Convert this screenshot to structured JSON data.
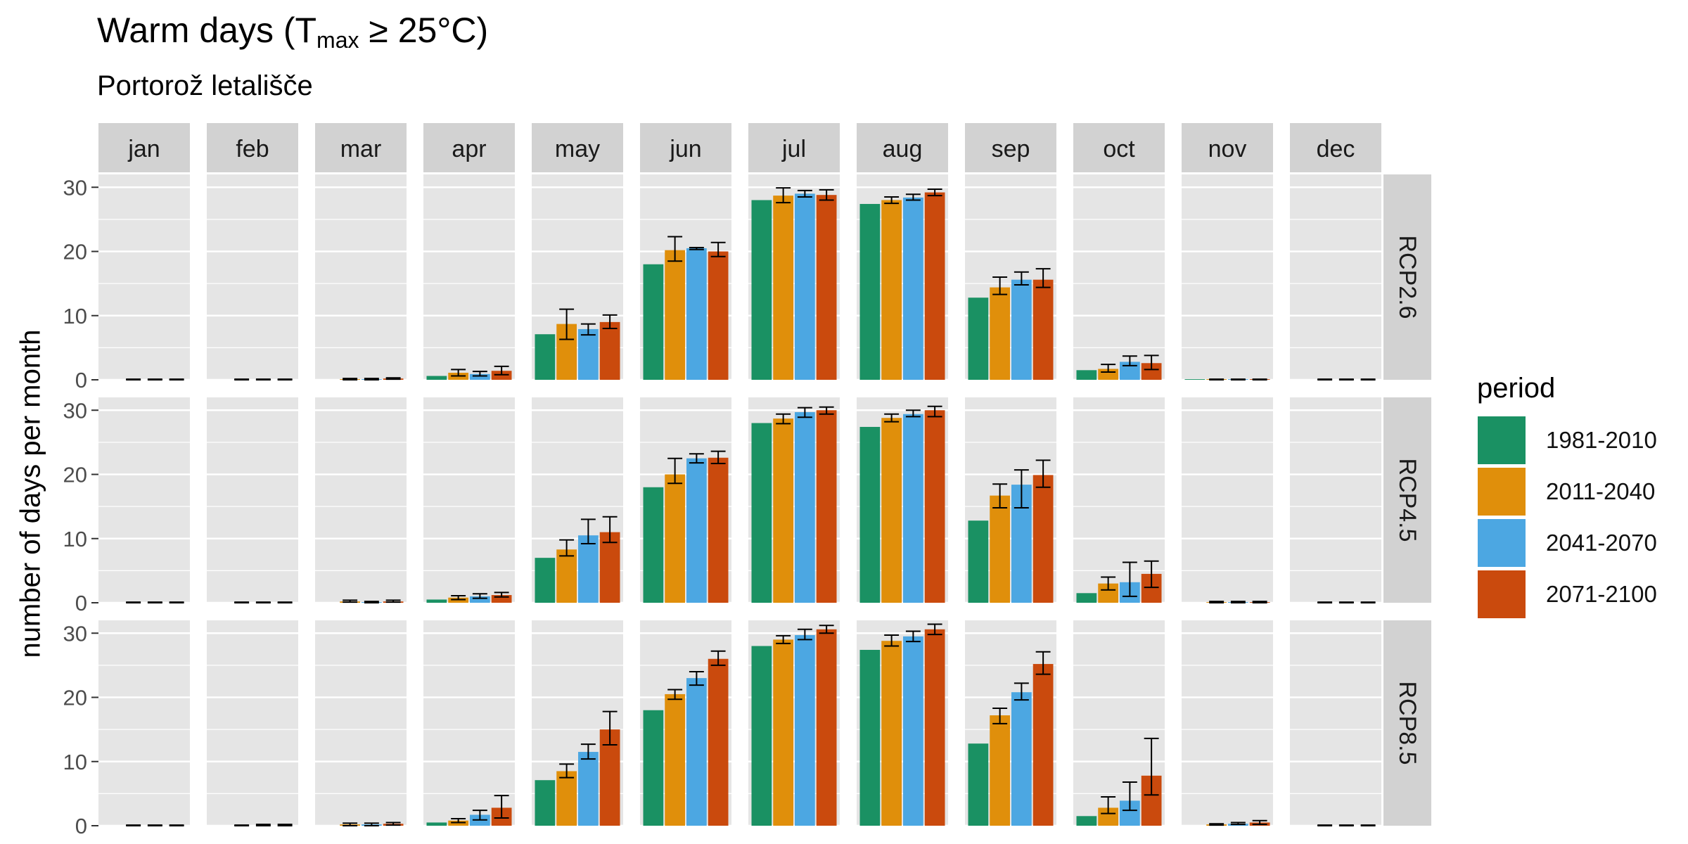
{
  "title": {
    "main": "Warm days (T",
    "sub": "max",
    "suffix": " ≥ 25°C)"
  },
  "subtitle": "Portorož letališče",
  "colors": {
    "panel_bg": "#e5e5e5",
    "strip_bg": "#d2d2d2",
    "grid": "#ffffff",
    "periods": [
      "#1a9163",
      "#e08f0b",
      "#4ca7e2",
      "#ca4a0d"
    ]
  },
  "chart_data": {
    "type": "bar",
    "ylabel": "number of days per month",
    "ylim": [
      0,
      32
    ],
    "yticks": [
      0,
      10,
      20,
      30
    ],
    "months": [
      "jan",
      "feb",
      "mar",
      "apr",
      "may",
      "jun",
      "jul",
      "aug",
      "sep",
      "oct",
      "nov",
      "dec"
    ],
    "scenarios": [
      "RCP2.6",
      "RCP4.5",
      "RCP8.5"
    ],
    "legend": {
      "title": "period",
      "position": "right",
      "entries": [
        "1981-2010",
        "2011-2040",
        "2041-2070",
        "2071-2100"
      ]
    },
    "panels": {
      "RCP2.6": {
        "values": [
          [
            0,
            0,
            0,
            0
          ],
          [
            0,
            0,
            0,
            0
          ],
          [
            0,
            0.1,
            0.1,
            0.2
          ],
          [
            0.6,
            1.1,
            0.9,
            1.4
          ],
          [
            7.1,
            8.7,
            7.9,
            9.0
          ],
          [
            18.0,
            20.2,
            20.5,
            20.0
          ],
          [
            28.0,
            28.7,
            29.0,
            28.8
          ],
          [
            27.4,
            28.0,
            28.4,
            29.2
          ],
          [
            12.8,
            14.4,
            15.6,
            15.6
          ],
          [
            1.5,
            1.7,
            2.8,
            2.6
          ],
          [
            0.1,
            0.1,
            0.1,
            0.1
          ],
          [
            0,
            0,
            0,
            0
          ]
        ],
        "errors": [
          [
            null,
            [
              0,
              0.1
            ],
            [
              0,
              0.1
            ],
            [
              0,
              0.1
            ]
          ],
          [
            null,
            [
              0,
              0.1
            ],
            [
              0,
              0.1
            ],
            [
              0,
              0.1
            ]
          ],
          [
            null,
            [
              0,
              0.2
            ],
            [
              0,
              0.2
            ],
            [
              0.1,
              0.3
            ]
          ],
          [
            null,
            [
              0.6,
              1.6
            ],
            [
              0.6,
              1.3
            ],
            [
              0.8,
              2.1
            ]
          ],
          [
            null,
            [
              6.3,
              11.0
            ],
            [
              7.0,
              8.7
            ],
            [
              8.0,
              10.1
            ]
          ],
          [
            null,
            [
              18.5,
              22.3
            ],
            [
              20.3,
              20.6
            ],
            [
              19.2,
              21.4
            ]
          ],
          [
            null,
            [
              27.6,
              29.9
            ],
            [
              28.5,
              29.5
            ],
            [
              28.0,
              29.6
            ]
          ],
          [
            null,
            [
              27.5,
              28.5
            ],
            [
              28.0,
              28.9
            ],
            [
              28.7,
              29.7
            ]
          ],
          [
            null,
            [
              13.3,
              16.0
            ],
            [
              14.8,
              16.8
            ],
            [
              14.4,
              17.3
            ]
          ],
          [
            null,
            [
              1.2,
              2.4
            ],
            [
              2.2,
              3.7
            ],
            [
              1.6,
              3.8
            ]
          ],
          [
            null,
            [
              0,
              0.1
            ],
            [
              0,
              0.1
            ],
            [
              0,
              0.1
            ]
          ],
          [
            null,
            [
              0,
              0.1
            ],
            [
              0,
              0.1
            ],
            [
              0,
              0.1
            ]
          ]
        ]
      },
      "RCP4.5": {
        "values": [
          [
            0,
            0,
            0,
            0
          ],
          [
            0,
            0,
            0,
            0
          ],
          [
            0,
            0.2,
            0.1,
            0.2
          ],
          [
            0.5,
            0.8,
            1.0,
            1.2
          ],
          [
            7.0,
            8.3,
            10.5,
            11.0
          ],
          [
            18.0,
            20.0,
            22.5,
            22.6
          ],
          [
            28.0,
            28.7,
            29.7,
            30.0
          ],
          [
            27.4,
            28.8,
            29.4,
            30.0
          ],
          [
            12.8,
            16.7,
            18.4,
            19.9
          ],
          [
            1.5,
            3.0,
            3.2,
            4.5
          ],
          [
            0,
            0.1,
            0.1,
            0.1
          ],
          [
            0,
            0,
            0,
            0
          ]
        ],
        "errors": [
          [
            null,
            [
              0,
              0.1
            ],
            [
              0,
              0.1
            ],
            [
              0,
              0.1
            ]
          ],
          [
            null,
            [
              0,
              0.1
            ],
            [
              0,
              0.1
            ],
            [
              0,
              0.1
            ]
          ],
          [
            null,
            [
              0.1,
              0.4
            ],
            [
              0,
              0.2
            ],
            [
              0.1,
              0.4
            ]
          ],
          [
            null,
            [
              0.5,
              1.1
            ],
            [
              0.7,
              1.4
            ],
            [
              0.9,
              1.6
            ]
          ],
          [
            null,
            [
              7.3,
              9.8
            ],
            [
              9.2,
              13.0
            ],
            [
              9.4,
              13.4
            ]
          ],
          [
            null,
            [
              18.6,
              22.5
            ],
            [
              21.8,
              23.2
            ],
            [
              21.7,
              23.6
            ]
          ],
          [
            null,
            [
              27.9,
              29.4
            ],
            [
              28.9,
              30.4
            ],
            [
              29.4,
              30.5
            ]
          ],
          [
            null,
            [
              28.2,
              29.4
            ],
            [
              29.0,
              30.0
            ],
            [
              29.0,
              30.6
            ]
          ],
          [
            null,
            [
              14.8,
              18.5
            ],
            [
              14.8,
              20.7
            ],
            [
              18.0,
              22.2
            ]
          ],
          [
            null,
            [
              2.0,
              4.0
            ],
            [
              1.0,
              6.3
            ],
            [
              2.4,
              6.5
            ]
          ],
          [
            null,
            [
              0,
              0.2
            ],
            [
              0,
              0.2
            ],
            [
              0,
              0.2
            ]
          ],
          [
            null,
            [
              0,
              0.1
            ],
            [
              0,
              0.1
            ],
            [
              0,
              0.1
            ]
          ]
        ]
      },
      "RCP8.5": {
        "values": [
          [
            0,
            0,
            0,
            0
          ],
          [
            0,
            0,
            0,
            0
          ],
          [
            0,
            0.2,
            0.2,
            0.3
          ],
          [
            0.5,
            0.8,
            1.7,
            2.8
          ],
          [
            7.1,
            8.5,
            11.5,
            15.0
          ],
          [
            18.0,
            20.5,
            23.0,
            26.0
          ],
          [
            28.0,
            29.0,
            29.7,
            30.6
          ],
          [
            27.4,
            28.8,
            29.5,
            30.6
          ],
          [
            12.8,
            17.2,
            20.8,
            25.2
          ],
          [
            1.5,
            2.8,
            3.9,
            7.8
          ],
          [
            0,
            0.2,
            0.3,
            0.5
          ],
          [
            0,
            0,
            0,
            0
          ]
        ],
        "errors": [
          [
            null,
            [
              0,
              0.1
            ],
            [
              0,
              0.1
            ],
            [
              0,
              0.1
            ]
          ],
          [
            null,
            [
              0,
              0.1
            ],
            [
              0,
              0.2
            ],
            [
              0,
              0.2
            ]
          ],
          [
            null,
            [
              0,
              0.4
            ],
            [
              0,
              0.4
            ],
            [
              0.1,
              0.5
            ]
          ],
          [
            null,
            [
              0.5,
              1.1
            ],
            [
              0.9,
              2.4
            ],
            [
              1.2,
              4.7
            ]
          ],
          [
            null,
            [
              7.5,
              9.6
            ],
            [
              10.4,
              12.7
            ],
            [
              12.6,
              17.8
            ]
          ],
          [
            null,
            [
              19.7,
              21.2
            ],
            [
              21.9,
              24.0
            ],
            [
              25.0,
              27.2
            ]
          ],
          [
            null,
            [
              28.4,
              29.6
            ],
            [
              29.0,
              30.6
            ],
            [
              30.0,
              31.2
            ]
          ],
          [
            null,
            [
              28.0,
              29.7
            ],
            [
              28.7,
              30.3
            ],
            [
              29.8,
              31.4
            ]
          ],
          [
            null,
            [
              15.9,
              18.3
            ],
            [
              19.6,
              22.2
            ],
            [
              23.6,
              27.1
            ]
          ],
          [
            null,
            [
              1.9,
              4.5
            ],
            [
              2.4,
              6.8
            ],
            [
              4.8,
              13.6
            ]
          ],
          [
            null,
            [
              0.1,
              0.3
            ],
            [
              0.2,
              0.5
            ],
            [
              0.2,
              0.8
            ]
          ],
          [
            null,
            [
              0,
              0.1
            ],
            [
              0,
              0.1
            ],
            [
              0,
              0.1
            ]
          ]
        ]
      }
    }
  }
}
